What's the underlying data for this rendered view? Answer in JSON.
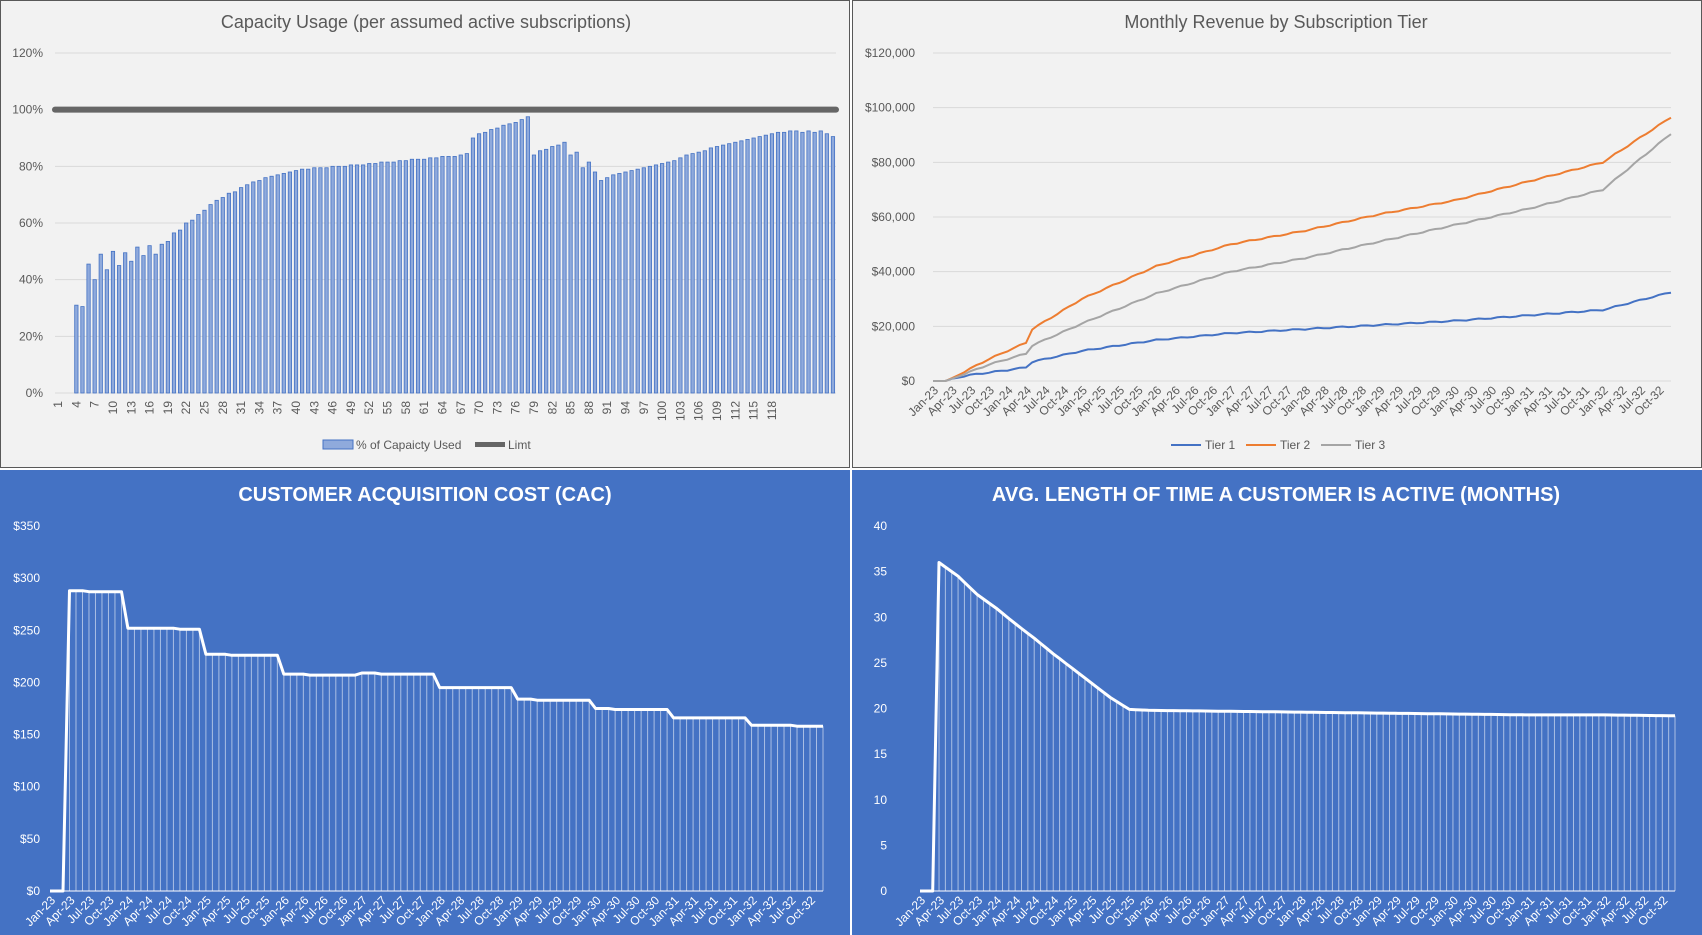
{
  "charts": [
    {
      "title": "Capacity Usage (per assumed active subscriptions)",
      "legend": [
        "% of Capaicty Used",
        "Limt"
      ]
    },
    {
      "title": "Monthly Revenue by Subscription Tier",
      "legend": [
        "Tier 1",
        "Tier 2",
        "Tier 3"
      ]
    },
    {
      "title": "CUSTOMER ACQUISITION COST (CAC)"
    },
    {
      "title": "AVG. LENGTH OF TIME A CUSTOMER IS ACTIVE (MONTHS)"
    }
  ],
  "chart_data": [
    {
      "type": "bar",
      "title": "Capacity Usage (per assumed active subscriptions)",
      "x_tick_labels": [
        "1",
        "4",
        "7",
        "10",
        "13",
        "16",
        "19",
        "22",
        "25",
        "28",
        "31",
        "34",
        "37",
        "40",
        "43",
        "46",
        "49",
        "52",
        "55",
        "58",
        "61",
        "64",
        "67",
        "70",
        "73",
        "76",
        "79",
        "82",
        "85",
        "88",
        "91",
        "94",
        "97",
        "100",
        "103",
        "106",
        "109",
        "112",
        "115",
        "118"
      ],
      "ylim": [
        0,
        1.2
      ],
      "y_ticks": [
        "0%",
        "20%",
        "40%",
        "60%",
        "80%",
        "100%",
        "120%"
      ],
      "series": [
        {
          "name": "% of Capaicty Used",
          "kind": "bar",
          "color": "#4472c4",
          "values": [
            0,
            0,
            0,
            0.31,
            0.305,
            0.455,
            0.4,
            0.49,
            0.435,
            0.5,
            0.45,
            0.495,
            0.465,
            0.515,
            0.485,
            0.52,
            0.49,
            0.525,
            0.535,
            0.565,
            0.575,
            0.6,
            0.61,
            0.63,
            0.645,
            0.665,
            0.68,
            0.69,
            0.705,
            0.71,
            0.725,
            0.735,
            0.745,
            0.75,
            0.76,
            0.765,
            0.77,
            0.775,
            0.78,
            0.785,
            0.79,
            0.79,
            0.795,
            0.795,
            0.795,
            0.8,
            0.8,
            0.8,
            0.805,
            0.805,
            0.805,
            0.81,
            0.81,
            0.815,
            0.815,
            0.815,
            0.82,
            0.82,
            0.825,
            0.825,
            0.825,
            0.83,
            0.83,
            0.835,
            0.835,
            0.835,
            0.84,
            0.845,
            0.9,
            0.915,
            0.92,
            0.93,
            0.935,
            0.945,
            0.95,
            0.955,
            0.965,
            0.975,
            0.84,
            0.855,
            0.86,
            0.87,
            0.875,
            0.885,
            0.84,
            0.85,
            0.795,
            0.815,
            0.78,
            0.75,
            0.76,
            0.77,
            0.775,
            0.78,
            0.785,
            0.79,
            0.795,
            0.8,
            0.805,
            0.81,
            0.815,
            0.82,
            0.83,
            0.84,
            0.845,
            0.85,
            0.855,
            0.865,
            0.87,
            0.875,
            0.88,
            0.885,
            0.89,
            0.895,
            0.9,
            0.905,
            0.91,
            0.915,
            0.92,
            0.92,
            0.925,
            0.925,
            0.92,
            0.925,
            0.92,
            0.925,
            0.915,
            0.905
          ]
        },
        {
          "name": "Limt",
          "kind": "line",
          "color": "#666666",
          "value": 1.0
        }
      ]
    },
    {
      "type": "line",
      "title": "Monthly Revenue by Subscription Tier",
      "x_tick_labels": [
        "Jan-23",
        "Apr-23",
        "Jul-23",
        "Oct-23",
        "Jan-24",
        "Apr-24",
        "Jul-24",
        "Oct-24",
        "Jan-25",
        "Apr-25",
        "Jul-25",
        "Oct-25",
        "Jan-26",
        "Apr-26",
        "Jul-26",
        "Oct-26",
        "Jan-27",
        "Apr-27",
        "Jul-27",
        "Oct-27",
        "Jan-28",
        "Apr-28",
        "Jul-28",
        "Oct-28",
        "Jan-29",
        "Apr-29",
        "Jul-29",
        "Oct-29",
        "Jan-30",
        "Apr-30",
        "Jul-30",
        "Oct-30",
        "Jan-31",
        "Apr-31",
        "Jul-31",
        "Oct-31",
        "Jan-32",
        "Apr-32",
        "Jul-32",
        "Oct-32"
      ],
      "ylim": [
        0,
        120000
      ],
      "y_ticks": [
        "$0",
        "$20,000",
        "$40,000",
        "$60,000",
        "$80,000",
        "$100,000",
        "$120,000"
      ],
      "series": [
        {
          "name": "Tier 1",
          "color": "#4472c4",
          "points": [
            [
              0,
              0
            ],
            [
              2,
              0
            ],
            [
              3,
              800
            ],
            [
              6,
              2200
            ],
            [
              12,
              4000
            ],
            [
              15,
              5000
            ],
            [
              16,
              7000
            ],
            [
              24,
              11000
            ],
            [
              36,
              15000
            ],
            [
              48,
              17500
            ],
            [
              60,
              19000
            ],
            [
              72,
              20500
            ],
            [
              84,
              22000
            ],
            [
              96,
              24000
            ],
            [
              108,
              26000
            ],
            [
              119,
              32500
            ]
          ]
        },
        {
          "name": "Tier 2",
          "color": "#ed7d31",
          "points": [
            [
              0,
              0
            ],
            [
              2,
              0
            ],
            [
              3,
              1000
            ],
            [
              9,
              8000
            ],
            [
              15,
              14000
            ],
            [
              16,
              19000
            ],
            [
              24,
              30000
            ],
            [
              36,
              42000
            ],
            [
              48,
              50000
            ],
            [
              60,
              55000
            ],
            [
              72,
              61000
            ],
            [
              84,
              66000
            ],
            [
              96,
              73000
            ],
            [
              108,
              80000
            ],
            [
              119,
              96500
            ]
          ]
        },
        {
          "name": "Tier 3",
          "color": "#a5a5a5",
          "points": [
            [
              0,
              0
            ],
            [
              2,
              0
            ],
            [
              3,
              800
            ],
            [
              9,
              6000
            ],
            [
              15,
              10000
            ],
            [
              16,
              13000
            ],
            [
              24,
              21000
            ],
            [
              36,
              32000
            ],
            [
              48,
              40000
            ],
            [
              60,
              45000
            ],
            [
              72,
              51000
            ],
            [
              84,
              57000
            ],
            [
              96,
              63000
            ],
            [
              108,
              70000
            ],
            [
              119,
              90500
            ]
          ]
        }
      ]
    },
    {
      "type": "area",
      "title": "CUSTOMER ACQUISITION COST (CAC)",
      "x_tick_labels": [
        "Jan-23",
        "Apr-23",
        "Jul-23",
        "Oct-23",
        "Jan-24",
        "Apr-24",
        "Jul-24",
        "Oct-24",
        "Jan-25",
        "Apr-25",
        "Jul-25",
        "Oct-25",
        "Jan-26",
        "Apr-26",
        "Jul-26",
        "Oct-26",
        "Jan-27",
        "Apr-27",
        "Jul-27",
        "Oct-27",
        "Jan-28",
        "Apr-28",
        "Jul-28",
        "Oct-28",
        "Jan-29",
        "Apr-29",
        "Jul-29",
        "Oct-29",
        "Jan-30",
        "Apr-30",
        "Jul-30",
        "Oct-30",
        "Jan-31",
        "Apr-31",
        "Jul-31",
        "Oct-31",
        "Jan-32",
        "Apr-32",
        "Jul-32",
        "Oct-32"
      ],
      "ylim": [
        0,
        350
      ],
      "y_ticks": [
        "$0",
        "$50",
        "$100",
        "$150",
        "$200",
        "$250",
        "$300",
        "$350"
      ],
      "points": [
        [
          0,
          0
        ],
        [
          2,
          0
        ],
        [
          3,
          288
        ],
        [
          5,
          288
        ],
        [
          6,
          287
        ],
        [
          11,
          287
        ],
        [
          12,
          252
        ],
        [
          19,
          252
        ],
        [
          20,
          251
        ],
        [
          23,
          251
        ],
        [
          24,
          227
        ],
        [
          27,
          227
        ],
        [
          28,
          226
        ],
        [
          35,
          226
        ],
        [
          36,
          208
        ],
        [
          39,
          208
        ],
        [
          40,
          207
        ],
        [
          47,
          207
        ],
        [
          48,
          209
        ],
        [
          50,
          209
        ],
        [
          51,
          208
        ],
        [
          59,
          208
        ],
        [
          60,
          195
        ],
        [
          71,
          195
        ],
        [
          72,
          184
        ],
        [
          74,
          184
        ],
        [
          75,
          183
        ],
        [
          83,
          183
        ],
        [
          84,
          175
        ],
        [
          86,
          175
        ],
        [
          87,
          174
        ],
        [
          95,
          174
        ],
        [
          96,
          166
        ],
        [
          107,
          166
        ],
        [
          108,
          159
        ],
        [
          114,
          159
        ],
        [
          115,
          158
        ],
        [
          119,
          158
        ]
      ]
    },
    {
      "type": "area",
      "title": "AVG. LENGTH OF TIME A CUSTOMER IS ACTIVE (MONTHS)",
      "x_tick_labels": [
        "Jan-23",
        "Apr-23",
        "Jul-23",
        "Oct-23",
        "Jan-24",
        "Apr-24",
        "Jul-24",
        "Oct-24",
        "Jan-25",
        "Apr-25",
        "Jul-25",
        "Oct-25",
        "Jan-26",
        "Apr-26",
        "Jul-26",
        "Oct-26",
        "Jan-27",
        "Apr-27",
        "Jul-27",
        "Oct-27",
        "Jan-28",
        "Apr-28",
        "Jul-28",
        "Oct-28",
        "Jan-29",
        "Apr-29",
        "Jul-29",
        "Oct-29",
        "Jan-30",
        "Apr-30",
        "Jul-30",
        "Oct-30",
        "Jan-31",
        "Apr-31",
        "Jul-31",
        "Oct-31",
        "Jan-32",
        "Apr-32",
        "Jul-32",
        "Oct-32"
      ],
      "ylim": [
        0,
        40
      ],
      "y_ticks": [
        "0",
        "5",
        "10",
        "15",
        "20",
        "25",
        "30",
        "35",
        "40"
      ],
      "points": [
        [
          0,
          0
        ],
        [
          2,
          0
        ],
        [
          3,
          36
        ],
        [
          6,
          34.5
        ],
        [
          9,
          32.5
        ],
        [
          12,
          31
        ],
        [
          15,
          29.3
        ],
        [
          18,
          27.7
        ],
        [
          21,
          26
        ],
        [
          24,
          24.4
        ],
        [
          27,
          22.8
        ],
        [
          30,
          21.2
        ],
        [
          33,
          19.9
        ],
        [
          36,
          19.8
        ],
        [
          48,
          19.7
        ],
        [
          60,
          19.6
        ],
        [
          72,
          19.5
        ],
        [
          84,
          19.4
        ],
        [
          96,
          19.3
        ],
        [
          108,
          19.3
        ],
        [
          119,
          19.2
        ]
      ]
    }
  ]
}
